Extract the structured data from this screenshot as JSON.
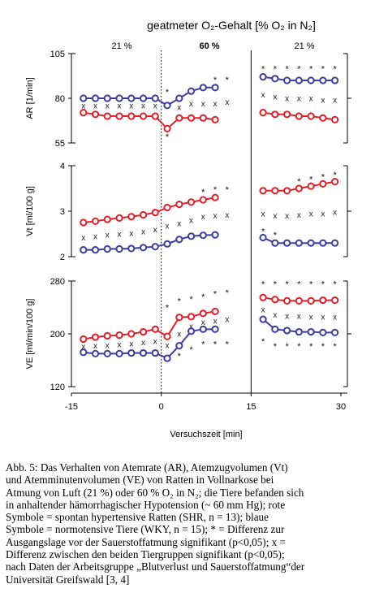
{
  "chart_data": {
    "type": "line",
    "title": "geatmeter O₂-Gehalt [% O₂ in  N₂]",
    "phases": [
      "21 %",
      "60 %",
      "21 %"
    ],
    "xlabel": "Versuchszeit  [min]",
    "x_ticks": [
      -15,
      0,
      15,
      30
    ],
    "xlim": [
      -15,
      30
    ],
    "x": [
      -13,
      -11,
      -9,
      -7,
      -5,
      -3,
      -1,
      1,
      3,
      5,
      7,
      9,
      11,
      13,
      15,
      17,
      19,
      21,
      23,
      25,
      27,
      29
    ],
    "colors": {
      "shr": "#e0202a",
      "wky": "#3d3d9e"
    },
    "panels": [
      {
        "ylabel": "AR [1/min]",
        "ylim": [
          55,
          105
        ],
        "y_ticks": [
          55,
          80,
          105
        ],
        "series": [
          {
            "color": "red",
            "values": [
              72,
              71,
              70,
              70,
              70,
              70,
              70,
              63,
              69,
              69,
              69,
              68,
              null,
              null,
              null,
              72,
              71,
              71,
              70,
              70,
              69,
              68
            ]
          },
          {
            "color": "blue",
            "values": [
              80,
              80,
              80,
              80,
              80,
              80,
              80,
              76,
              80,
              84,
              86,
              86,
              null,
              null,
              null,
              92,
              91,
              90,
              90,
              90,
              90,
              90
            ]
          }
        ],
        "stars": [
          [
            1,
            84
          ],
          [
            1,
            59
          ],
          [
            9,
            91
          ],
          [
            11,
            91
          ],
          [
            17,
            97
          ],
          [
            19,
            97
          ],
          [
            21,
            97
          ],
          [
            23,
            97
          ],
          [
            25,
            97
          ],
          [
            27,
            97
          ],
          [
            29,
            97
          ]
        ],
        "crosses": [
          [
            -13,
            76
          ],
          [
            -11,
            76
          ],
          [
            -9,
            76
          ],
          [
            -7,
            76
          ],
          [
            -5,
            76
          ],
          [
            -3,
            76
          ],
          [
            -1,
            76
          ],
          [
            3,
            75
          ],
          [
            5,
            77
          ],
          [
            7,
            77
          ],
          [
            9,
            77
          ],
          [
            11,
            78
          ],
          [
            17,
            82
          ],
          [
            19,
            81
          ],
          [
            21,
            80
          ],
          [
            23,
            80
          ],
          [
            25,
            80
          ],
          [
            27,
            79
          ],
          [
            29,
            79
          ]
        ]
      },
      {
        "ylabel": "Vt [ml/100 g]",
        "ylim": [
          2,
          4
        ],
        "y_ticks": [
          2,
          3,
          4
        ],
        "series": [
          {
            "color": "red",
            "values": [
              2.75,
              2.78,
              2.82,
              2.85,
              2.88,
              2.92,
              2.97,
              3.08,
              3.15,
              3.2,
              3.25,
              3.3,
              null,
              null,
              null,
              3.45,
              3.45,
              3.45,
              3.5,
              3.55,
              3.6,
              3.65
            ]
          },
          {
            "color": "blue",
            "values": [
              2.15,
              2.15,
              2.17,
              2.17,
              2.18,
              2.2,
              2.22,
              2.28,
              2.38,
              2.45,
              2.47,
              2.48,
              null,
              null,
              null,
              2.42,
              2.3,
              2.3,
              2.3,
              2.3,
              2.3,
              2.3
            ]
          }
        ],
        "stars": [
          [
            7,
            3.45
          ],
          [
            9,
            3.5
          ],
          [
            11,
            3.5
          ],
          [
            23,
            3.68
          ],
          [
            25,
            3.72
          ],
          [
            27,
            3.78
          ],
          [
            29,
            3.82
          ],
          [
            17,
            2.58
          ],
          [
            19,
            2.5
          ]
        ],
        "crosses": [
          [
            -13,
            2.42
          ],
          [
            -11,
            2.45
          ],
          [
            -9,
            2.48
          ],
          [
            -7,
            2.5
          ],
          [
            -5,
            2.52
          ],
          [
            -3,
            2.55
          ],
          [
            -1,
            2.6
          ],
          [
            1,
            2.68
          ],
          [
            3,
            2.73
          ],
          [
            5,
            2.8
          ],
          [
            7,
            2.88
          ],
          [
            9,
            2.9
          ],
          [
            11,
            2.92
          ],
          [
            17,
            2.95
          ],
          [
            19,
            2.9
          ],
          [
            21,
            2.9
          ],
          [
            23,
            2.92
          ],
          [
            25,
            2.95
          ],
          [
            27,
            2.95
          ],
          [
            29,
            2.98
          ]
        ]
      },
      {
        "ylabel": "VE [ml/min/100 g]",
        "ylim": [
          120,
          280
        ],
        "y_ticks": [
          120,
          200,
          280
        ],
        "series": [
          {
            "color": "red",
            "values": [
              192,
              195,
              197,
              198,
              200,
              203,
              207,
              196,
              225,
              226,
              231,
              234,
              null,
              null,
              null,
              255,
              252,
              250,
              250,
              250,
              251,
              251
            ]
          },
          {
            "color": "blue",
            "values": [
              172,
              170,
              170,
              170,
              171,
              171,
              171,
              163,
              182,
              204,
              207,
              207,
              null,
              null,
              null,
              222,
              207,
              205,
              203,
              203,
              202,
              202
            ]
          }
        ],
        "stars": [
          [
            1,
            241
          ],
          [
            3,
            251
          ],
          [
            5,
            254
          ],
          [
            7,
            258
          ],
          [
            9,
            262
          ],
          [
            11,
            264
          ],
          [
            17,
            277
          ],
          [
            19,
            277
          ],
          [
            21,
            277
          ],
          [
            23,
            277
          ],
          [
            25,
            277
          ],
          [
            27,
            277
          ],
          [
            29,
            277
          ],
          [
            3,
            168
          ],
          [
            5,
            178
          ],
          [
            7,
            186
          ],
          [
            9,
            186
          ],
          [
            11,
            186
          ],
          [
            17,
            190
          ],
          [
            19,
            183
          ],
          [
            21,
            183
          ],
          [
            23,
            183
          ],
          [
            25,
            183
          ],
          [
            27,
            183
          ],
          [
            29,
            183
          ]
        ],
        "crosses": [
          [
            -13,
            181
          ],
          [
            -11,
            182
          ],
          [
            -9,
            183
          ],
          [
            -7,
            184
          ],
          [
            -5,
            185
          ],
          [
            -3,
            187
          ],
          [
            -1,
            189
          ],
          [
            1,
            183
          ],
          [
            3,
            200
          ],
          [
            5,
            212
          ],
          [
            7,
            218
          ],
          [
            9,
            220
          ],
          [
            11,
            222
          ],
          [
            17,
            237
          ],
          [
            19,
            229
          ],
          [
            21,
            227
          ],
          [
            23,
            227
          ],
          [
            25,
            226
          ],
          [
            27,
            226
          ],
          [
            29,
            226
          ]
        ]
      }
    ]
  },
  "caption": [
    "Abb. 5: Das Verhalten von Atemrate (AR), Atemzugvolumen (Vt)",
    "und  Atemminutenvolumen (VE) von Ratten in Vollnarkose bei",
    "Atmung von Luft (21 %) oder 60 % O₂ in N₂; die Tiere befanden sich",
    "in anhaltender hämorrhagischer Hypotension (~ 60 mm Hg); rote",
    "Symbole = spontan hypertensive Ratten (SHR, n = 13); blaue",
    "Symbole = normotensive Tiere (WKY, n = 15); * = Differenz zur",
    "Ausgangslage vor der Sauerstoffatmung signifikant (p<0,05); x =",
    "Differenz zwischen den beiden Tiergruppen signifikant (p<0,05);",
    "nach Daten der Arbeitsgruppe „Blutverlust und Sauerstoffatmung“der",
    "Universität Greifswald [3, 4]"
  ]
}
